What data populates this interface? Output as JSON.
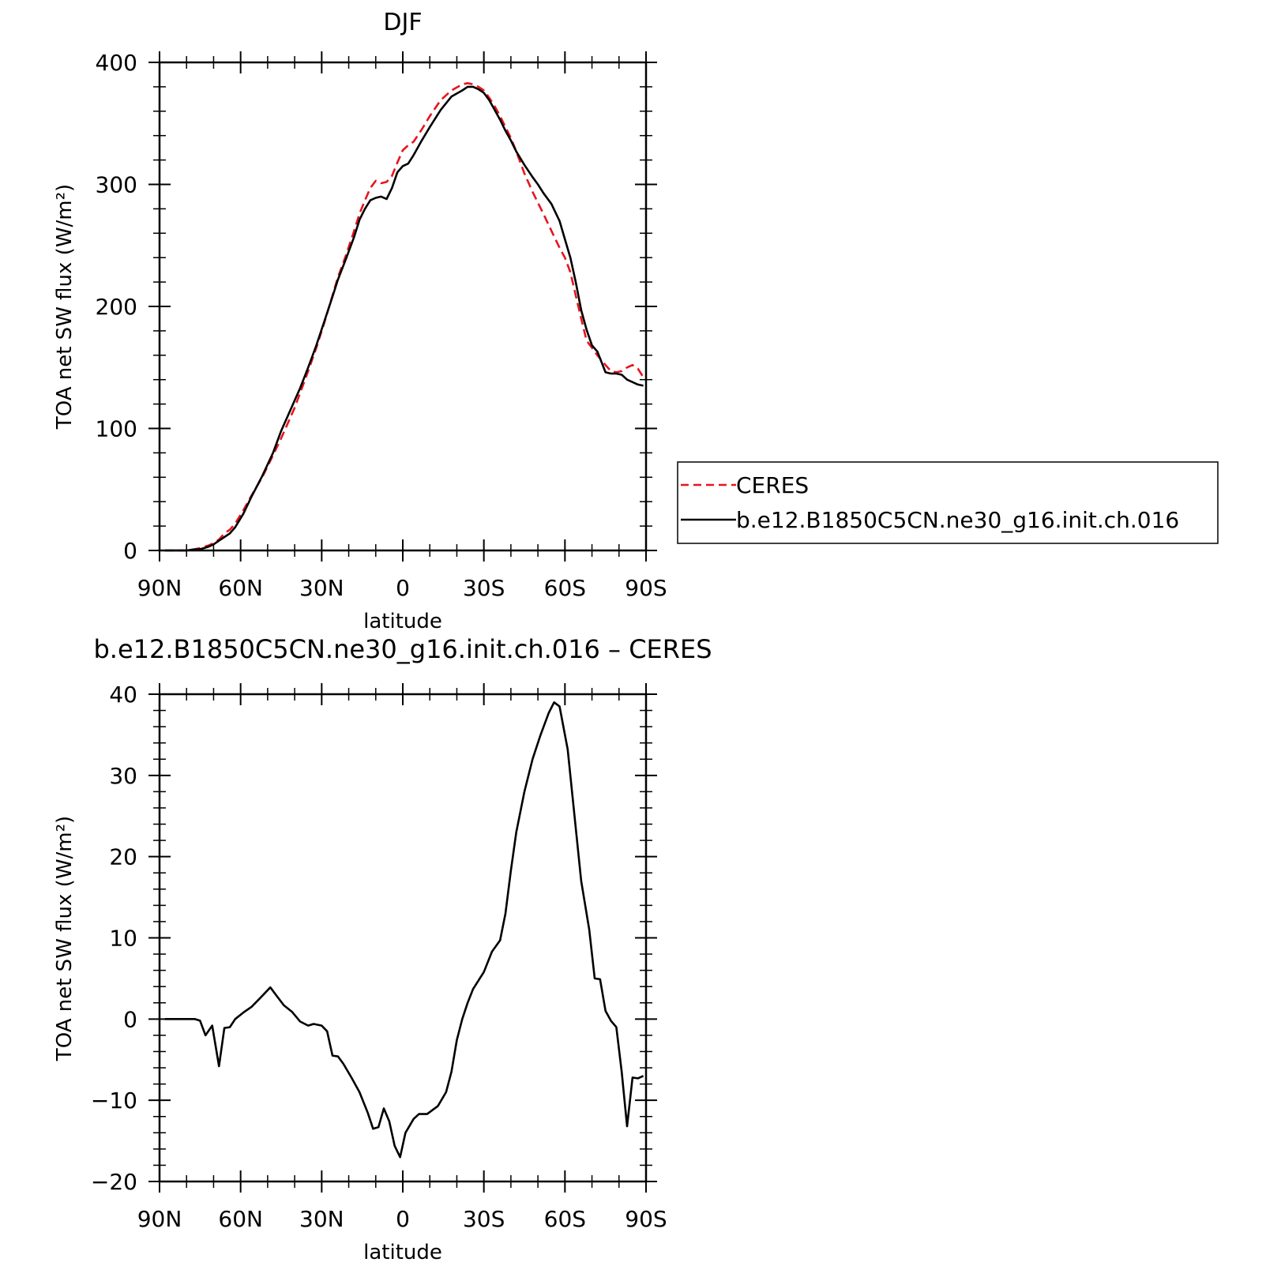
{
  "chart_data": [
    {
      "type": "line",
      "title": "DJF",
      "xlabel": "latitude",
      "ylabel": "TOA net SW flux (W/m²)",
      "xlim": [
        90,
        -90
      ],
      "ylim": [
        0,
        400
      ],
      "xticks": [
        90,
        60,
        30,
        0,
        -30,
        -60,
        -90
      ],
      "xtick_labels": [
        "90N",
        "60N",
        "30N",
        "0",
        "30S",
        "60S",
        "90S"
      ],
      "yticks": [
        0,
        100,
        200,
        300,
        400
      ],
      "ytick_labels": [
        "0",
        "100",
        "200",
        "300",
        "400"
      ],
      "legend_position": "right",
      "series": [
        {
          "name": "CERES",
          "color": "#e8141e",
          "dashed": true,
          "x": [
            88,
            85,
            80,
            77,
            75,
            72,
            70,
            68,
            66,
            64,
            62,
            59,
            56,
            52,
            48,
            45,
            42,
            40,
            38,
            35,
            32,
            29,
            26,
            24,
            21,
            18,
            16,
            14,
            12,
            10,
            8,
            6,
            4,
            2,
            0,
            -2,
            -4,
            -7,
            -10,
            -14,
            -18,
            -22,
            -24,
            -26,
            -28,
            -30,
            -32,
            -34,
            -36,
            -38,
            -40,
            -42,
            -45,
            -48,
            -50,
            -52,
            -55,
            -58,
            -60,
            -62,
            -64,
            -66,
            -68,
            -70,
            -72,
            -75,
            -77,
            -79,
            -81,
            -83,
            -85,
            -87,
            -89
          ],
          "y": [
            0,
            0,
            0,
            1,
            2,
            4,
            6,
            9,
            14,
            17,
            22,
            33,
            45,
            60,
            78,
            92,
            107,
            117,
            129,
            147,
            166,
            187,
            209,
            224,
            242,
            262,
            276,
            287,
            297,
            303,
            301,
            302,
            307,
            318,
            328,
            332,
            335,
            345,
            356,
            369,
            377,
            382,
            383,
            382,
            380,
            377,
            371,
            364,
            356,
            347,
            338,
            327,
            309,
            294,
            285,
            276,
            262,
            248,
            240,
            228,
            209,
            190,
            172,
            166,
            160,
            152,
            147,
            146,
            147,
            150,
            152,
            149,
            142
          ]
        },
        {
          "name": "b.e12.B1850C5CN.ne30_g16.init.ch.016",
          "color": "#000000",
          "dashed": false,
          "x": [
            88,
            85,
            80,
            77,
            75,
            72,
            70,
            68,
            66,
            64,
            62,
            59,
            56,
            52,
            48,
            45,
            42,
            40,
            38,
            35,
            32,
            29,
            26,
            24,
            21,
            18,
            16,
            14,
            12,
            10,
            8,
            6,
            4,
            2,
            0,
            -2,
            -4,
            -7,
            -10,
            -14,
            -18,
            -22,
            -24,
            -26,
            -28,
            -30,
            -32,
            -34,
            -36,
            -38,
            -40,
            -42,
            -45,
            -48,
            -50,
            -52,
            -55,
            -58,
            -60,
            -62,
            -64,
            -66,
            -68,
            -70,
            -72,
            -75,
            -77,
            -79,
            -81,
            -83,
            -85,
            -87,
            -89
          ],
          "y": [
            0,
            0,
            0,
            1,
            1,
            3,
            5,
            8,
            11,
            14,
            19,
            30,
            44,
            61,
            80,
            98,
            113,
            123,
            133,
            150,
            168,
            188,
            208,
            222,
            239,
            257,
            271,
            280,
            287,
            289,
            290,
            288,
            297,
            310,
            315,
            317,
            324,
            336,
            347,
            361,
            372,
            377,
            380,
            380,
            378,
            375,
            369,
            361,
            353,
            344,
            336,
            327,
            316,
            306,
            300,
            293,
            284,
            270,
            255,
            240,
            220,
            197,
            181,
            168,
            163,
            146,
            145,
            145,
            144,
            140,
            138,
            136,
            135
          ]
        }
      ]
    },
    {
      "type": "line",
      "title": "b.e12.B1850C5CN.ne30_g16.init.ch.016 – CERES",
      "xlabel": "latitude",
      "ylabel": "TOA net SW flux (W/m²)",
      "xlim": [
        90,
        -90
      ],
      "ylim": [
        -20,
        40
      ],
      "xticks": [
        90,
        60,
        30,
        0,
        -30,
        -60,
        -90
      ],
      "xtick_labels": [
        "90N",
        "60N",
        "30N",
        "0",
        "30S",
        "60S",
        "90S"
      ],
      "yticks": [
        -20,
        -10,
        0,
        10,
        20,
        30,
        40
      ],
      "ytick_labels": [
        "−20",
        "−10",
        "0",
        "10",
        "20",
        "30",
        "40"
      ],
      "series": [
        {
          "color": "#000000",
          "dashed": false,
          "x": [
            88,
            85,
            80,
            77,
            75,
            73,
            70.5,
            68,
            66,
            64,
            62,
            59,
            56,
            53,
            49,
            47,
            44,
            41,
            38,
            35,
            33,
            30,
            28,
            26,
            24,
            22,
            19,
            16,
            13,
            11,
            9,
            7,
            5,
            3,
            1,
            -1,
            -4,
            -6,
            -9,
            -13,
            -16,
            -18,
            -20,
            -22,
            -24,
            -26,
            -30,
            -33,
            -36,
            -38,
            -40,
            -42,
            -45,
            -48,
            -51,
            -54,
            -56,
            -58,
            -61,
            -66,
            -69,
            -71,
            -73,
            -75,
            -77,
            -79,
            -81,
            -83,
            -85,
            -87,
            -89
          ],
          "y": [
            0,
            0,
            0,
            0,
            -0.2,
            -2,
            -0.8,
            -5.8,
            -1.1,
            -1,
            0,
            0.8,
            1.5,
            2.5,
            3.9,
            3,
            1.7,
            0.9,
            -0.3,
            -0.8,
            -0.6,
            -0.8,
            -1.5,
            -4.5,
            -4.6,
            -5.5,
            -7.2,
            -9,
            -11.5,
            -13.5,
            -13.3,
            -11,
            -12.6,
            -15.6,
            -17,
            -14,
            -12.3,
            -11.7,
            -11.7,
            -10.7,
            -9,
            -6.5,
            -2.6,
            0,
            2,
            3.7,
            5.8,
            8.3,
            9.7,
            13,
            18.3,
            23,
            28,
            32,
            35,
            37.7,
            39,
            38.5,
            33.2,
            17,
            11,
            5,
            4.9,
            1,
            -0.2,
            -1,
            -6.5,
            -13.2,
            -7.2,
            -7.3,
            -7
          ]
        }
      ]
    }
  ]
}
